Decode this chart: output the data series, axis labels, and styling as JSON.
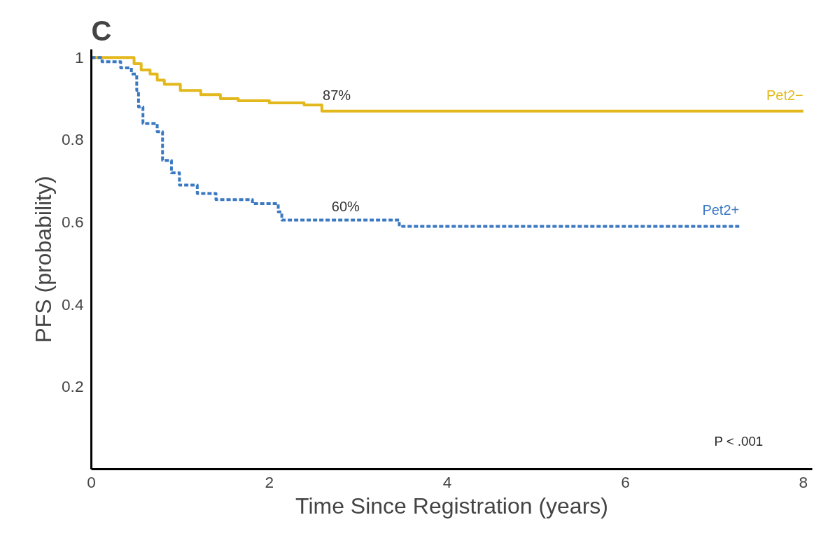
{
  "chart_data": {
    "type": "step",
    "title": "C",
    "xlabel": "Time Since Registration (years)",
    "ylabel": "PFS (probability)",
    "xlim": [
      0,
      8.1
    ],
    "ylim": [
      0,
      1.02
    ],
    "xticks": [
      0,
      2,
      4,
      6,
      8
    ],
    "yticks": [
      0.2,
      0.4,
      0.6,
      0.8,
      {
        "value": 1,
        "label": "1"
      }
    ],
    "grid": false,
    "series": [
      {
        "name": "Pet2−",
        "color": "#e3b81c",
        "line_style": "solid",
        "x": [
          0,
          0.48,
          0.56,
          0.66,
          0.74,
          0.82,
          1.0,
          1.23,
          1.45,
          1.65,
          2.0,
          2.39,
          2.59,
          8.0
        ],
        "values": [
          1,
          0.985,
          0.97,
          0.96,
          0.945,
          0.935,
          0.92,
          0.91,
          0.9,
          0.895,
          0.89,
          0.885,
          0.87,
          0.87
        ]
      },
      {
        "name": "Pet2+",
        "color": "#3a78c2",
        "line_style": "dashed",
        "x": [
          0,
          0.12,
          0.33,
          0.45,
          0.51,
          0.53,
          0.58,
          0.74,
          0.8,
          0.9,
          0.99,
          1.19,
          1.4,
          1.81,
          2.1,
          2.14,
          3.46,
          7.28
        ],
        "values": [
          1,
          0.99,
          0.975,
          0.96,
          0.92,
          0.88,
          0.84,
          0.82,
          0.75,
          0.72,
          0.69,
          0.67,
          0.655,
          0.645,
          0.625,
          0.605,
          0.59,
          0.59
        ]
      }
    ],
    "annotations": [
      {
        "text": "87%",
        "x": 2.6,
        "y": 0.87
      },
      {
        "text": "60%",
        "x": 2.7,
        "y": 0.6
      },
      "P < .001"
    ]
  }
}
